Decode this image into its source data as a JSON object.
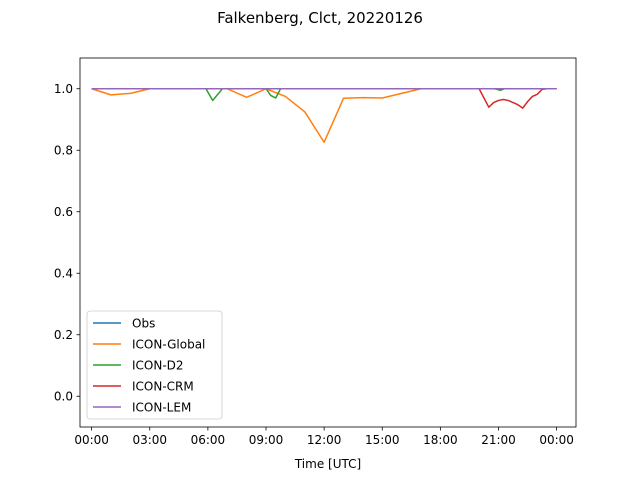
{
  "chart_data": {
    "type": "line",
    "title": "Falkenberg, Clct, 20220126",
    "xlabel": "Time [UTC]",
    "ylabel": "",
    "xlim": [
      -0.6,
      25.0
    ],
    "ylim": [
      -0.1,
      1.1
    ],
    "xticks": [
      {
        "value": 0,
        "label": "00:00"
      },
      {
        "value": 3,
        "label": "03:00"
      },
      {
        "value": 6,
        "label": "06:00"
      },
      {
        "value": 9,
        "label": "09:00"
      },
      {
        "value": 12,
        "label": "12:00"
      },
      {
        "value": 15,
        "label": "15:00"
      },
      {
        "value": 18,
        "label": "18:00"
      },
      {
        "value": 21,
        "label": "21:00"
      },
      {
        "value": 24,
        "label": "00:00"
      }
    ],
    "yticks": [
      {
        "value": 0.0,
        "label": "0.0"
      },
      {
        "value": 0.2,
        "label": "0.2"
      },
      {
        "value": 0.4,
        "label": "0.4"
      },
      {
        "value": 0.6,
        "label": "0.6"
      },
      {
        "value": 0.8,
        "label": "0.8"
      },
      {
        "value": 1.0,
        "label": "1.0"
      }
    ],
    "legend_position": "lower-left",
    "series": [
      {
        "name": "Obs",
        "color": "#1f77b4",
        "x": [
          0,
          24
        ],
        "y": [
          1.0,
          1.0
        ]
      },
      {
        "name": "ICON-Global",
        "color": "#ff7f0e",
        "x": [
          0,
          1,
          2,
          3,
          4,
          5,
          6,
          7,
          8,
          9,
          10,
          11,
          12,
          13,
          14,
          15,
          16,
          17,
          18,
          19,
          20,
          21,
          22,
          23,
          24
        ],
        "y": [
          1.0,
          0.98,
          0.985,
          1.0,
          1.0,
          1.0,
          1.0,
          1.0,
          0.972,
          1.0,
          0.975,
          0.925,
          0.826,
          0.969,
          0.971,
          0.97,
          0.985,
          1.0,
          1.0,
          1.0,
          1.0,
          1.0,
          1.0,
          1.0,
          1.0
        ]
      },
      {
        "name": "ICON-D2",
        "color": "#2ca02c",
        "x": [
          0,
          5.9,
          6.25,
          6.75,
          7.0,
          9.0,
          9.25,
          9.5,
          9.75,
          10.0,
          20.8,
          21.1,
          21.3,
          24
        ],
        "y": [
          1.0,
          1.0,
          0.962,
          1.0,
          1.0,
          1.0,
          0.978,
          0.97,
          1.0,
          1.0,
          1.0,
          0.995,
          1.0,
          1.0
        ]
      },
      {
        "name": "ICON-CRM",
        "color": "#d62728",
        "x": [
          0,
          20.0,
          20.25,
          20.5,
          20.75,
          21.0,
          21.25,
          21.5,
          21.75,
          22.0,
          22.25,
          22.5,
          22.75,
          23.0,
          23.25,
          23.5,
          23.75,
          24
        ],
        "y": [
          1.0,
          1.0,
          0.97,
          0.94,
          0.955,
          0.962,
          0.965,
          0.962,
          0.955,
          0.948,
          0.937,
          0.958,
          0.975,
          0.982,
          0.998,
          1.0,
          1.0,
          1.0
        ]
      },
      {
        "name": "ICON-LEM",
        "color": "#9467bd",
        "x": [
          0,
          24
        ],
        "y": [
          1.0,
          1.0
        ]
      }
    ]
  }
}
